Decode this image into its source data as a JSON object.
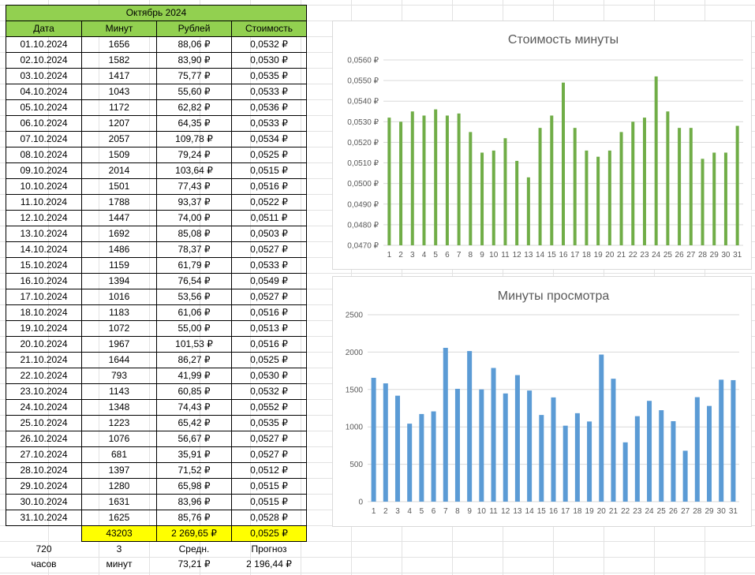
{
  "sheet": {
    "title": "Октябрь 2024",
    "headers": [
      "Дата",
      "Минут",
      "Рублей",
      "Стоимость"
    ],
    "rows": [
      [
        "01.10.2024",
        "1656",
        "88,06 ₽",
        "0,0532 ₽"
      ],
      [
        "02.10.2024",
        "1582",
        "83,90 ₽",
        "0,0530 ₽"
      ],
      [
        "03.10.2024",
        "1417",
        "75,77 ₽",
        "0,0535 ₽"
      ],
      [
        "04.10.2024",
        "1043",
        "55,60 ₽",
        "0,0533 ₽"
      ],
      [
        "05.10.2024",
        "1172",
        "62,82 ₽",
        "0,0536 ₽"
      ],
      [
        "06.10.2024",
        "1207",
        "64,35 ₽",
        "0,0533 ₽"
      ],
      [
        "07.10.2024",
        "2057",
        "109,78 ₽",
        "0,0534 ₽"
      ],
      [
        "08.10.2024",
        "1509",
        "79,24 ₽",
        "0,0525 ₽"
      ],
      [
        "09.10.2024",
        "2014",
        "103,64 ₽",
        "0,0515 ₽"
      ],
      [
        "10.10.2024",
        "1501",
        "77,43 ₽",
        "0,0516 ₽"
      ],
      [
        "11.10.2024",
        "1788",
        "93,37 ₽",
        "0,0522 ₽"
      ],
      [
        "12.10.2024",
        "1447",
        "74,00 ₽",
        "0,0511 ₽"
      ],
      [
        "13.10.2024",
        "1692",
        "85,08 ₽",
        "0,0503 ₽"
      ],
      [
        "14.10.2024",
        "1486",
        "78,37 ₽",
        "0,0527 ₽"
      ],
      [
        "15.10.2024",
        "1159",
        "61,79 ₽",
        "0,0533 ₽"
      ],
      [
        "16.10.2024",
        "1394",
        "76,54 ₽",
        "0,0549 ₽"
      ],
      [
        "17.10.2024",
        "1016",
        "53,56 ₽",
        "0,0527 ₽"
      ],
      [
        "18.10.2024",
        "1183",
        "61,06 ₽",
        "0,0516 ₽"
      ],
      [
        "19.10.2024",
        "1072",
        "55,00 ₽",
        "0,0513 ₽"
      ],
      [
        "20.10.2024",
        "1967",
        "101,53 ₽",
        "0,0516 ₽"
      ],
      [
        "21.10.2024",
        "1644",
        "86,27 ₽",
        "0,0525 ₽"
      ],
      [
        "22.10.2024",
        "793",
        "41,99 ₽",
        "0,0530 ₽"
      ],
      [
        "23.10.2024",
        "1143",
        "60,85 ₽",
        "0,0532 ₽"
      ],
      [
        "24.10.2024",
        "1348",
        "74,43 ₽",
        "0,0552 ₽"
      ],
      [
        "25.10.2024",
        "1223",
        "65,42 ₽",
        "0,0535 ₽"
      ],
      [
        "26.10.2024",
        "1076",
        "56,67 ₽",
        "0,0527 ₽"
      ],
      [
        "27.10.2024",
        "681",
        "35,91 ₽",
        "0,0527 ₽"
      ],
      [
        "28.10.2024",
        "1397",
        "71,52 ₽",
        "0,0512 ₽"
      ],
      [
        "29.10.2024",
        "1280",
        "65,98 ₽",
        "0,0515 ₽"
      ],
      [
        "30.10.2024",
        "1631",
        "83,96 ₽",
        "0,0515 ₽"
      ],
      [
        "31.10.2024",
        "1625",
        "85,76 ₽",
        "0,0528 ₽"
      ]
    ],
    "totals": {
      "minutes": "43203",
      "rubles": "2 269,65 ₽",
      "cost": "0,0525 ₽"
    },
    "extra1": [
      "720",
      "3",
      "Средн.",
      "Прогноз"
    ],
    "extra2": [
      "часов",
      "минут",
      "73,21 ₽",
      "2 196,44 ₽"
    ]
  },
  "chart_data": [
    {
      "type": "bar",
      "title": "Стоимость минуты",
      "color": "#70ad47",
      "categories": [
        "1",
        "2",
        "3",
        "4",
        "5",
        "6",
        "7",
        "8",
        "9",
        "10",
        "11",
        "12",
        "13",
        "14",
        "15",
        "16",
        "17",
        "18",
        "19",
        "20",
        "21",
        "22",
        "23",
        "24",
        "25",
        "26",
        "27",
        "28",
        "29",
        "30",
        "31"
      ],
      "values": [
        0.0532,
        0.053,
        0.0535,
        0.0533,
        0.0536,
        0.0533,
        0.0534,
        0.0525,
        0.0515,
        0.0516,
        0.0522,
        0.0511,
        0.0503,
        0.0527,
        0.0533,
        0.0549,
        0.0527,
        0.0516,
        0.0513,
        0.0516,
        0.0525,
        0.053,
        0.0532,
        0.0552,
        0.0535,
        0.0527,
        0.0527,
        0.0512,
        0.0515,
        0.0515,
        0.0528
      ],
      "ylim": [
        0.047,
        0.056
      ],
      "yticks": [
        "0,0470 ₽",
        "0,0480 ₽",
        "0,0490 ₽",
        "0,0500 ₽",
        "0,0510 ₽",
        "0,0520 ₽",
        "0,0530 ₽",
        "0,0540 ₽",
        "0,0550 ₽",
        "0,0560 ₽"
      ]
    },
    {
      "type": "bar",
      "title": "Минуты просмотра",
      "color": "#5b9bd5",
      "categories": [
        "1",
        "2",
        "3",
        "4",
        "5",
        "6",
        "7",
        "8",
        "9",
        "10",
        "11",
        "12",
        "13",
        "14",
        "15",
        "16",
        "17",
        "18",
        "19",
        "20",
        "21",
        "22",
        "23",
        "24",
        "25",
        "26",
        "27",
        "28",
        "29",
        "30",
        "31"
      ],
      "values": [
        1656,
        1582,
        1417,
        1043,
        1172,
        1207,
        2057,
        1509,
        2014,
        1501,
        1788,
        1447,
        1692,
        1486,
        1159,
        1394,
        1016,
        1183,
        1072,
        1967,
        1644,
        793,
        1143,
        1348,
        1223,
        1076,
        681,
        1397,
        1280,
        1631,
        1625
      ],
      "ylim": [
        0,
        2500
      ],
      "yticks": [
        "0",
        "500",
        "1000",
        "1500",
        "2000",
        "2500"
      ]
    }
  ]
}
